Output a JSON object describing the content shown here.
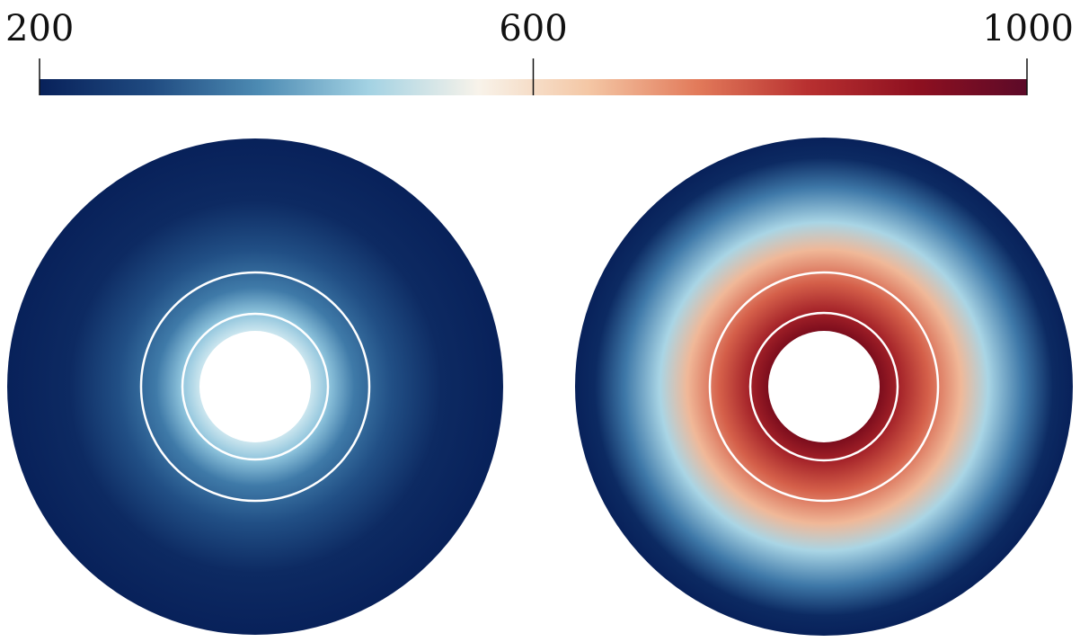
{
  "chart_data": {
    "type": "colorbar",
    "clim": [
      200,
      1000
    ],
    "ticks": [
      200,
      600,
      1000
    ],
    "colormap": [
      "#08215a",
      "#1f4a80",
      "#4d8bb3",
      "#a3d2e3",
      "#f8f3ea",
      "#f4c7a5",
      "#e27a5a",
      "#b83030",
      "#8e1020",
      "#5c0a28"
    ]
  }
}
